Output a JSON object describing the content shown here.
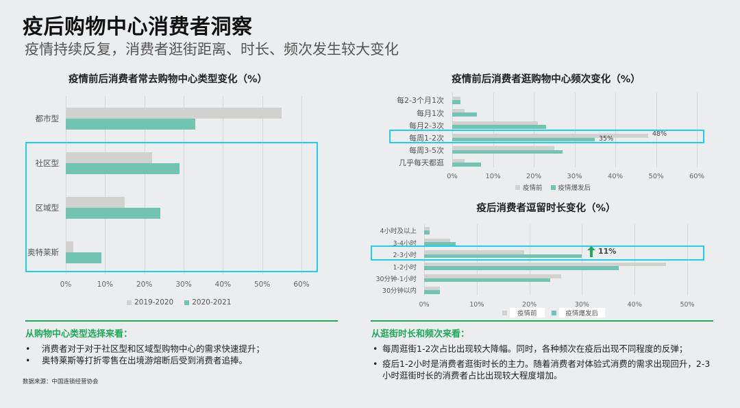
{
  "header": {
    "title": "疫后购物中心消费者洞察",
    "subtitle": "疫情持续反复，消费者逛街距离、时长、频次发生较大变化"
  },
  "chart_data": [
    {
      "type": "bar",
      "orientation": "horizontal",
      "title": "疫情前后消费者常去购物中心类型变化（%）",
      "categories": [
        "都市型",
        "社区型",
        "区域型",
        "奥特莱斯"
      ],
      "series": [
        {
          "name": "2019-2020",
          "color": "#d1d1cf",
          "values": [
            55,
            22,
            15,
            2
          ]
        },
        {
          "name": "2020-2021",
          "color": "#71c3b2",
          "values": [
            33,
            29,
            24,
            9
          ]
        }
      ],
      "xticks": [
        "0%",
        "10%",
        "20%",
        "30%",
        "40%",
        "50%",
        "60%"
      ],
      "xlim": [
        0,
        60
      ],
      "grid": true,
      "legend_position": "bottom",
      "highlight": [
        "社区型",
        "区域型",
        "奥特莱斯"
      ]
    },
    {
      "type": "bar",
      "orientation": "horizontal",
      "title": "疫情前后消费者逛购物中心频次变化（%）",
      "categories": [
        "每2-3个月1次",
        "每月1次",
        "每月2-3次",
        "每周1-2次",
        "每周3-5次",
        "几乎每天都逛"
      ],
      "series": [
        {
          "name": "疫情前",
          "color": "#d1d1cf",
          "values": [
            2,
            3,
            21,
            48,
            25,
            3
          ]
        },
        {
          "name": "疫情爆发后",
          "color": "#71c3b2",
          "values": [
            2,
            6,
            23,
            35,
            27,
            7
          ]
        }
      ],
      "annotations": [
        {
          "category": "每周1-2次",
          "labels": [
            "48%",
            "35%"
          ]
        }
      ],
      "xticks": [
        "0%",
        "10%",
        "20%",
        "30%",
        "40%",
        "50%",
        "60%"
      ],
      "xlim": [
        0,
        60
      ],
      "grid": true,
      "legend_position": "bottom",
      "highlight": [
        "每周1-2次"
      ]
    },
    {
      "type": "bar",
      "orientation": "horizontal",
      "title": "疫后消费者逗留时长变化（%）",
      "categories": [
        "4小时及以上",
        "3-4小时",
        "2-3小时",
        "1-2小时",
        "30分钟-1小时",
        "30分钟以内"
      ],
      "series": [
        {
          "name": "疫情前",
          "color": "#d1d1cf",
          "values": [
            1,
            5,
            19,
            46,
            26,
            3
          ]
        },
        {
          "name": "疫情爆发后",
          "color": "#71c3b2",
          "values": [
            1,
            6,
            30,
            37,
            24,
            3
          ]
        }
      ],
      "annotations": [
        {
          "category": "2-3小时",
          "text": "11%",
          "icon": "up-arrow"
        }
      ],
      "xticks": [
        "0%",
        "10%",
        "20%",
        "30%",
        "40%",
        "50%"
      ],
      "xlim": [
        0,
        50
      ],
      "grid": true,
      "legend_position": "bottom",
      "highlight": [
        "2-3小时"
      ]
    }
  ],
  "charts": {
    "left": {
      "title": "疫情前后消费者常去购物中心类型变化（%）",
      "cats": [
        "都市型",
        "社区型",
        "区域型",
        "奥特莱斯"
      ],
      "ticks": [
        "0%",
        "10%",
        "20%",
        "30%",
        "40%",
        "50%",
        "60%"
      ],
      "legend": [
        "2019-2020",
        "2020-2021"
      ]
    },
    "freq": {
      "title": "疫情前后消费者逛购物中心频次变化（%）",
      "cats": [
        "每2-3个月1次",
        "每月1次",
        "每月2-3次",
        "每周1-2次",
        "每周3-5次",
        "几乎每天都逛"
      ],
      "ticks": [
        "0%",
        "10%",
        "20%",
        "30%",
        "40%",
        "50%",
        "60%"
      ],
      "legend": [
        "疫情前",
        "疫情爆发后"
      ],
      "label_before": "48%",
      "label_after": "35%"
    },
    "dur": {
      "title": "疫后消费者逗留时长变化（%）",
      "cats": [
        "4小时及以上",
        "3-4小时",
        "2-3小时",
        "1-2小时",
        "30分钟-1小时",
        "30分钟以内"
      ],
      "ticks": [
        "0%",
        "10%",
        "20%",
        "30%",
        "40%",
        "50%"
      ],
      "legend": [
        "疫情前",
        "疫情爆发后"
      ],
      "delta": "11%"
    }
  },
  "colors": {
    "accent_green": "#1fa85a",
    "highlight_box": "#1ccdf5",
    "bar_before": "#d1d1cf",
    "bar_after": "#71c3b2"
  },
  "left_section": {
    "heading": "从购物中心类型选择来看：",
    "bullets": [
      "消费者对于对于社区型和区域型购物中心的需求快速提升；",
      "奥特莱斯等打折零售在出境游熔断后受到消费者追捧。"
    ],
    "source": "数据来源：中国连锁经营协会"
  },
  "right_section": {
    "heading": "从逛街时长和频次来看：",
    "bullets": [
      "每周逛街1-2次占比出现较大降幅。同时，各种频次在疫后出现不同程度的反弹；",
      "疫后1-2小时是消费者逛街时长的主力。随着消费者对体验式消费的需求出现回升，2-3小时逛街时长的消费者占比出现较大程度增加。"
    ]
  }
}
